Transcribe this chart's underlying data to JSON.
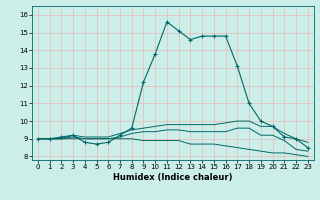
{
  "title": "",
  "xlabel": "Humidex (Indice chaleur)",
  "ylabel": "",
  "bg_color": "#cceee8",
  "grid_color": "#e8b8b8",
  "line_color": "#006868",
  "xlim": [
    -0.5,
    23.5
  ],
  "ylim": [
    7.8,
    16.5
  ],
  "xticks": [
    0,
    1,
    2,
    3,
    4,
    5,
    6,
    7,
    8,
    9,
    10,
    11,
    12,
    13,
    14,
    15,
    16,
    17,
    18,
    19,
    20,
    21,
    22,
    23
  ],
  "yticks": [
    8,
    9,
    10,
    11,
    12,
    13,
    14,
    15,
    16
  ],
  "series": [
    [
      9.0,
      9.0,
      9.1,
      9.2,
      8.8,
      8.7,
      8.8,
      9.2,
      9.6,
      12.2,
      13.8,
      15.6,
      15.1,
      14.6,
      14.8,
      14.8,
      14.8,
      13.1,
      11.0,
      10.0,
      9.7,
      9.1,
      9.0,
      8.5
    ],
    [
      9.0,
      9.0,
      9.0,
      9.2,
      9.1,
      9.1,
      9.1,
      9.3,
      9.5,
      9.6,
      9.7,
      9.8,
      9.8,
      9.8,
      9.8,
      9.8,
      9.9,
      10.0,
      10.0,
      9.7,
      9.7,
      9.3,
      9.0,
      8.8
    ],
    [
      9.0,
      9.0,
      9.0,
      9.1,
      9.0,
      9.0,
      9.0,
      9.1,
      9.3,
      9.4,
      9.4,
      9.5,
      9.5,
      9.4,
      9.4,
      9.4,
      9.4,
      9.6,
      9.6,
      9.2,
      9.2,
      8.9,
      8.4,
      8.3
    ],
    [
      9.0,
      9.0,
      9.0,
      9.0,
      9.0,
      9.0,
      9.0,
      9.0,
      9.0,
      8.9,
      8.9,
      8.9,
      8.9,
      8.7,
      8.7,
      8.7,
      8.6,
      8.5,
      8.4,
      8.3,
      8.2,
      8.2,
      8.1,
      8.0
    ]
  ]
}
